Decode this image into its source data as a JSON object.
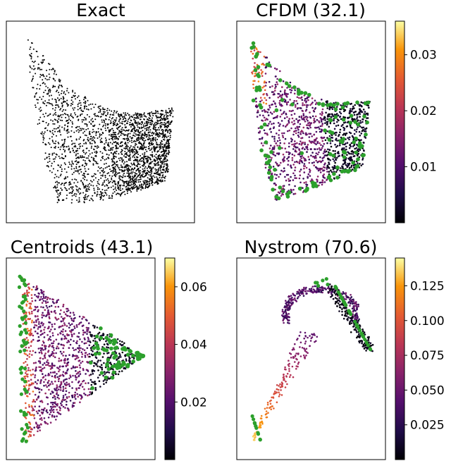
{
  "figure": {
    "colormap": "inferno",
    "highlight_color": "#2ca02c"
  },
  "chart_data": [
    {
      "type": "scatter",
      "title": "Exact",
      "point_color": "#000000",
      "shape": "curved quadrilateral (tall left edge, low right edge)",
      "colorbar": null
    },
    {
      "type": "scatter",
      "title": "CFDM (32.1)",
      "shape": "curved quadrilateral colored by error, green landmarks along edges",
      "colorbar": {
        "min": 0.0,
        "max": 0.036,
        "ticks": [
          0.01,
          0.02,
          0.03
        ],
        "tick_labels": [
          "0.01",
          "0.02",
          "0.03"
        ]
      }
    },
    {
      "type": "scatter",
      "title": "Centroids (43.1)",
      "shape": "triangle pointing right, colored by error, green landmarks",
      "colorbar": {
        "min": 0.0,
        "max": 0.07,
        "ticks": [
          0.02,
          0.04,
          0.06
        ],
        "tick_labels": [
          "0.02",
          "0.04",
          "0.06"
        ]
      }
    },
    {
      "type": "scatter",
      "title": "Nystrom (70.6)",
      "shape": "sparse loop with tail to lower-left, colored by error, green landmarks",
      "colorbar": {
        "min": 0.0,
        "max": 0.145,
        "ticks": [
          0.025,
          0.05,
          0.075,
          0.1,
          0.125
        ],
        "tick_labels": [
          "0.025",
          "0.050",
          "0.075",
          "0.100",
          "0.125"
        ]
      }
    }
  ]
}
